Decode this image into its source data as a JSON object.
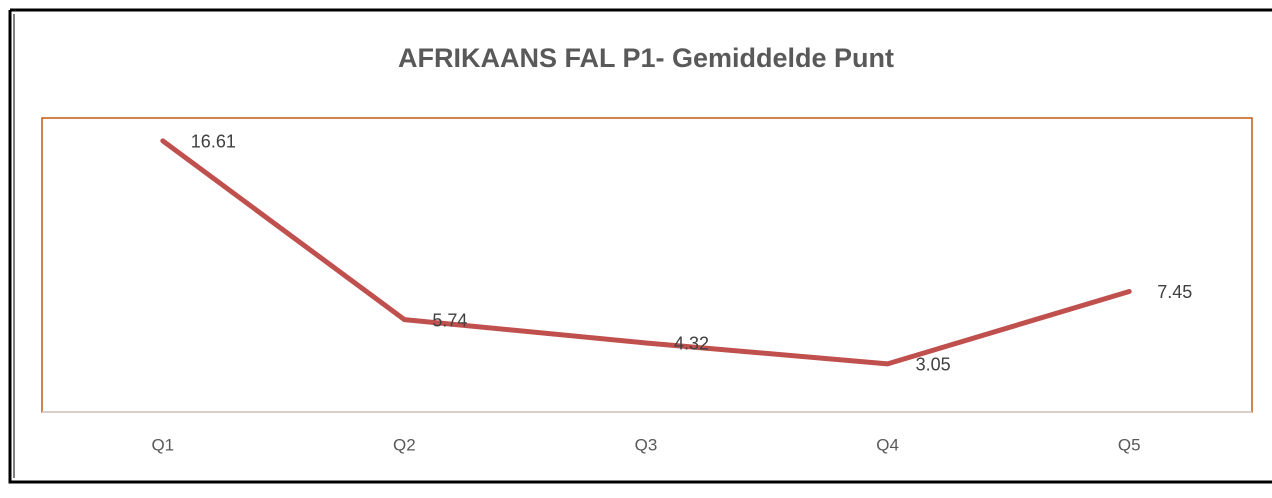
{
  "chart_data": {
    "type": "line",
    "title": "AFRIKAANS FAL P1- Gemiddelde Punt",
    "categories": [
      "Q1",
      "Q2",
      "Q3",
      "Q4",
      "Q5"
    ],
    "series": [
      {
        "name": "Gemiddelde Punt",
        "color": "#c0504d",
        "values": [
          16.61,
          5.74,
          4.32,
          3.05,
          7.45
        ]
      }
    ],
    "ylim": [
      0,
      18
    ]
  }
}
